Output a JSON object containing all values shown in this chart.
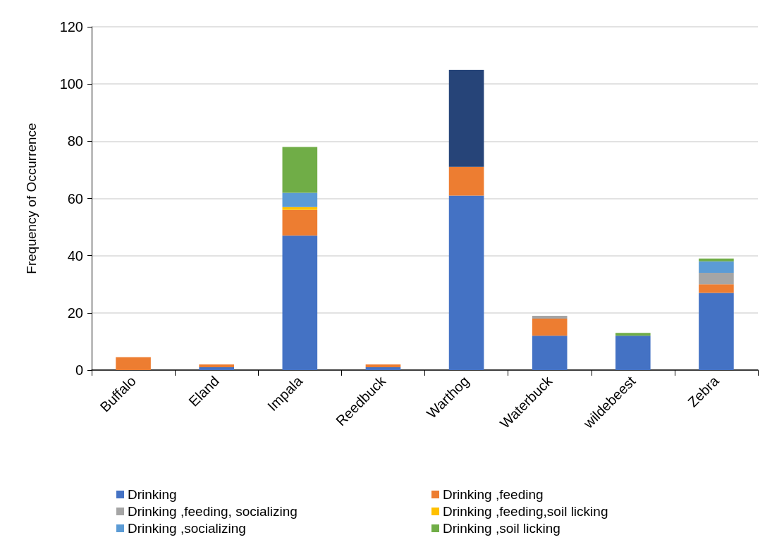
{
  "chart_data": {
    "type": "bar",
    "stacked": true,
    "ylabel": "Frequency of Occurrence",
    "categories": [
      "Buffalo",
      "Eland",
      "Impala",
      "Reedbuck",
      "Warthog",
      "Waterbuck",
      "wildebeest",
      "Zebra"
    ],
    "series": [
      {
        "name": "Drinking",
        "color": "#4472c4",
        "values": [
          null,
          1,
          47,
          1,
          61,
          12,
          12,
          27
        ]
      },
      {
        "name": "Drinking ,feeding",
        "color": "#ed7d31",
        "values": [
          4.5,
          1,
          9,
          1,
          10,
          6,
          null,
          3
        ]
      },
      {
        "name": "Drinking ,feeding, socializing",
        "color": "#a5a5a5",
        "values": [
          null,
          null,
          null,
          null,
          null,
          1,
          null,
          4
        ]
      },
      {
        "name": "Drinking ,feeding,soil licking",
        "color": "#ffc000",
        "values": [
          null,
          null,
          1,
          null,
          null,
          null,
          null,
          null
        ]
      },
      {
        "name": "Drinking ,socializing",
        "color": "#5b9bd5",
        "values": [
          null,
          null,
          5,
          null,
          null,
          null,
          null,
          4
        ]
      },
      {
        "name": "Drinking ,soil licking",
        "color": "#70ad47",
        "values": [
          null,
          null,
          16,
          null,
          null,
          null,
          1,
          1
        ]
      },
      {
        "color": "#264478",
        "values": [
          null,
          null,
          null,
          null,
          34,
          null,
          null,
          null
        ]
      }
    ],
    "ylim": [
      0,
      120
    ],
    "yticks": [
      0,
      20,
      40,
      60,
      80,
      100,
      120
    ],
    "grid": "y",
    "legend": "bottom"
  }
}
